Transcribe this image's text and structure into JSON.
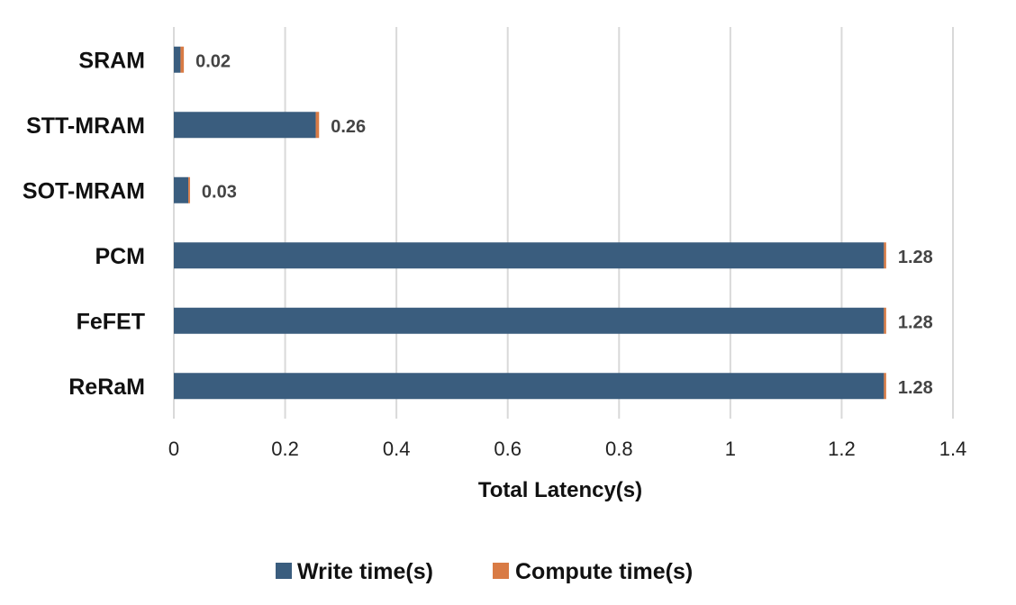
{
  "chart_data": {
    "type": "bar",
    "orientation": "horizontal",
    "stacked": true,
    "categories": [
      "SRAM",
      "STT-MRAM",
      "SOT-MRAM",
      "PCM",
      "FeFET",
      "ReRaM"
    ],
    "series": [
      {
        "name": "Write time(s)",
        "color": "#3a5d7e",
        "values": [
          0.012,
          0.255,
          0.026,
          1.276,
          1.276,
          1.276
        ]
      },
      {
        "name": "Compute time(s)",
        "color": "#d97b45",
        "values": [
          0.006,
          0.006,
          0.003,
          0.004,
          0.004,
          0.004
        ]
      }
    ],
    "data_labels": [
      "0.02",
      "0.26",
      "0.03",
      "1.28",
      "1.28",
      "1.28"
    ],
    "xlabel": "Total Latency(s)",
    "ylabel": "",
    "xlim": [
      0,
      1.4
    ],
    "xticks": [
      0,
      0.2,
      0.4,
      0.6,
      0.8,
      1,
      1.2,
      1.4
    ],
    "xtick_labels": [
      "0",
      "0.2",
      "0.4",
      "0.6",
      "0.8",
      "1",
      "1.2",
      "1.4"
    ],
    "grid": "vertical",
    "legend_position": "bottom"
  }
}
